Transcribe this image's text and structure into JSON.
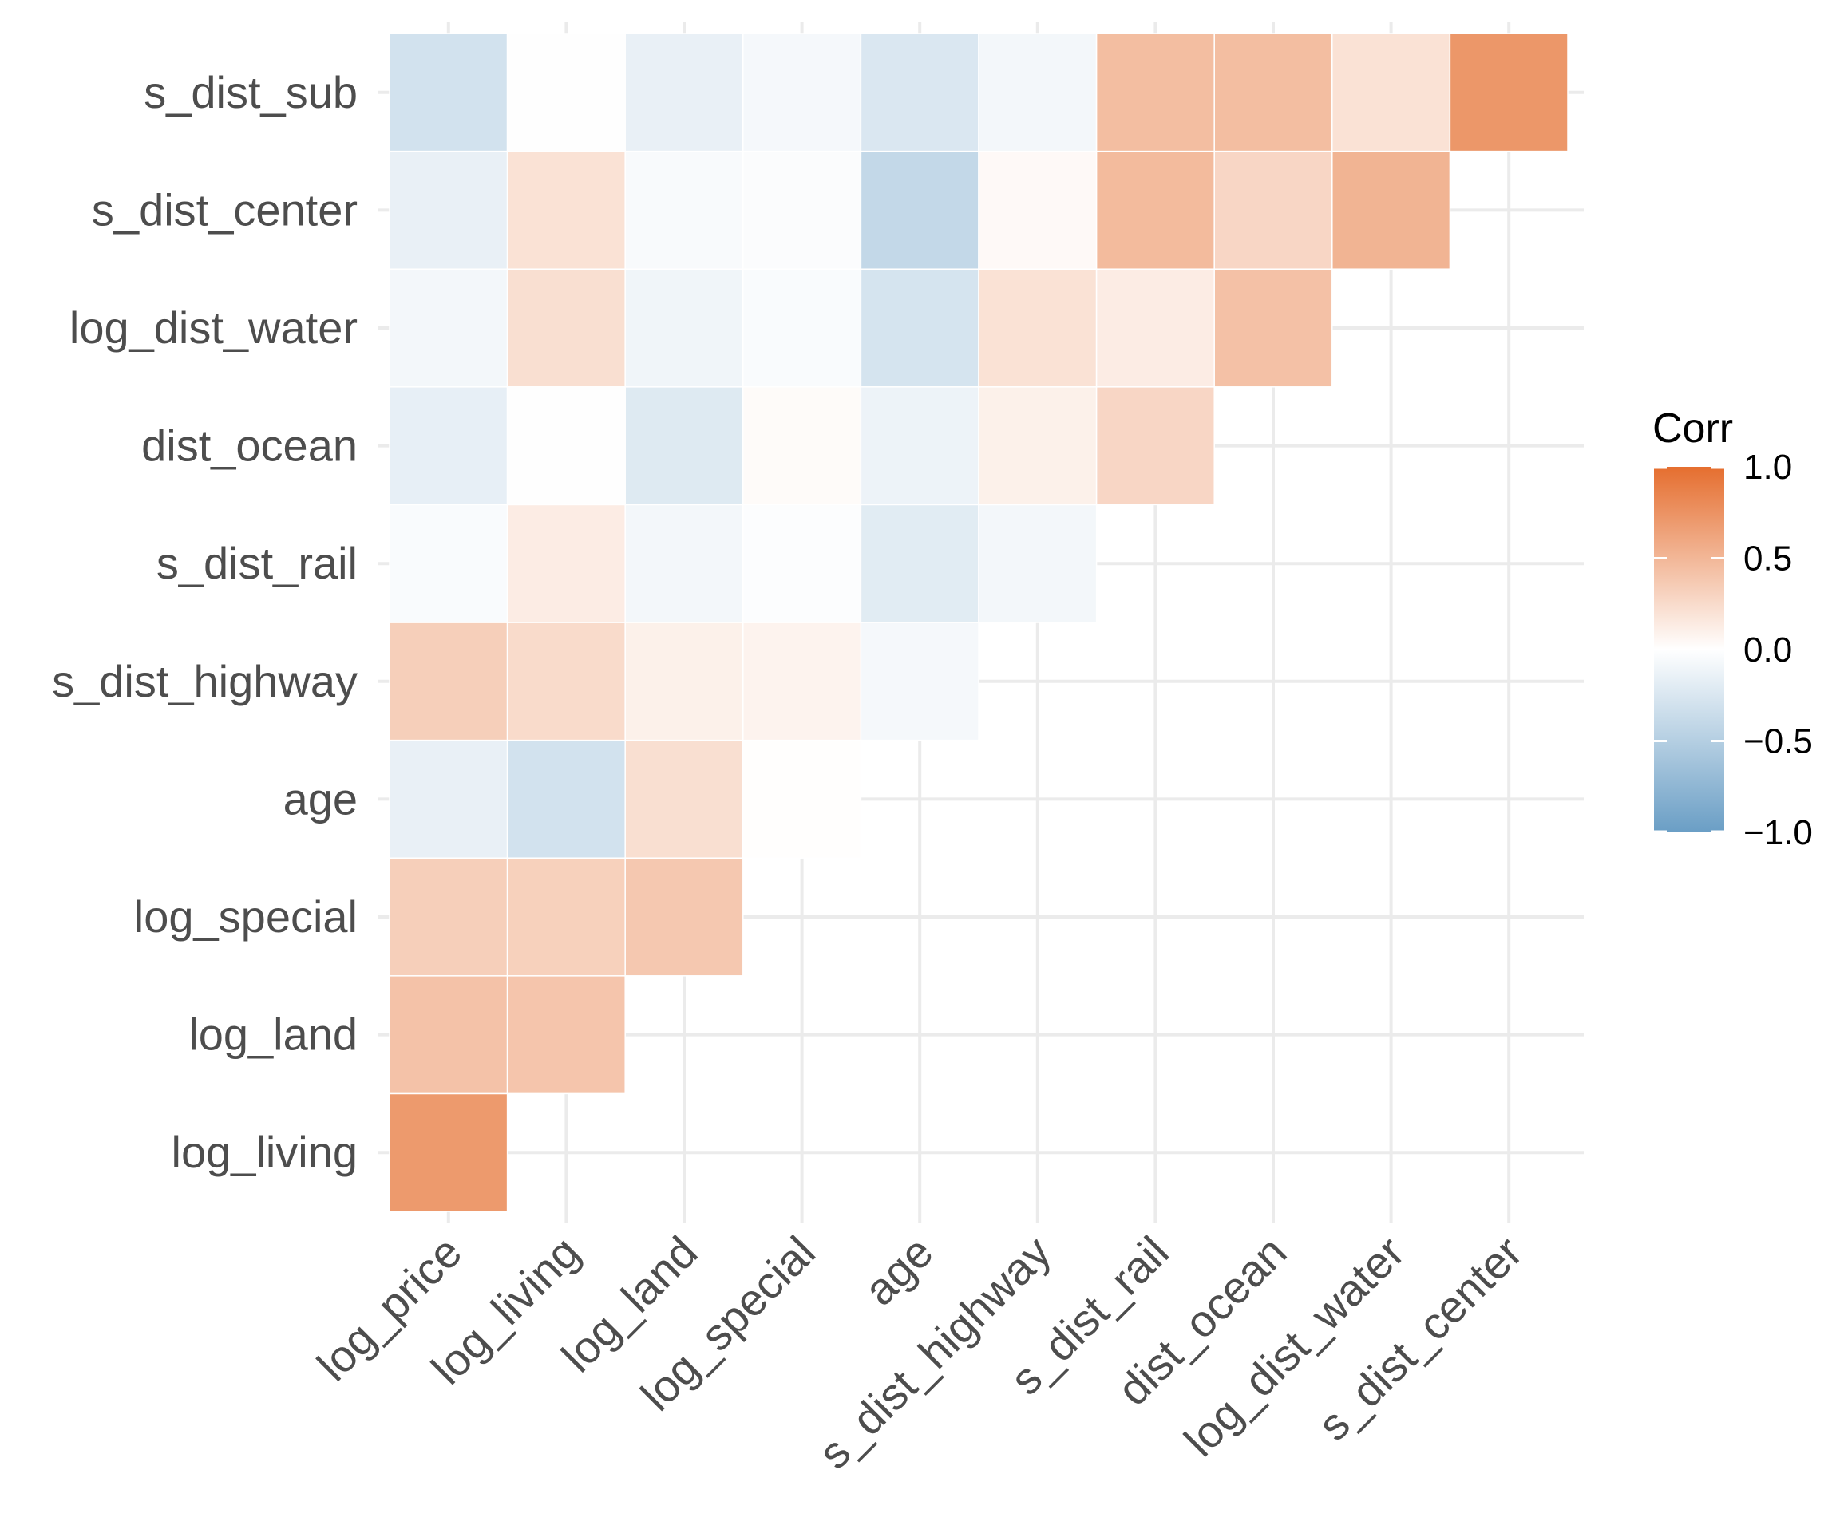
{
  "chart_data": {
    "type": "heatmap",
    "title": "",
    "x_labels": [
      "log_price",
      "log_living",
      "log_land",
      "log_special",
      "age",
      "s_dist_highway",
      "s_dist_rail",
      "dist_ocean",
      "log_dist_water",
      "s_dist_center"
    ],
    "y_labels": [
      "log_living",
      "log_land",
      "log_special",
      "age",
      "s_dist_highway",
      "s_dist_rail",
      "dist_ocean",
      "log_dist_water",
      "s_dist_center",
      "s_dist_sub"
    ],
    "cells": [
      {
        "x": "log_price",
        "y": "log_living",
        "value": 0.7
      },
      {
        "x": "log_price",
        "y": "log_land",
        "value": 0.42
      },
      {
        "x": "log_living",
        "y": "log_land",
        "value": 0.4
      },
      {
        "x": "log_price",
        "y": "log_special",
        "value": 0.33
      },
      {
        "x": "log_living",
        "y": "log_special",
        "value": 0.32
      },
      {
        "x": "log_land",
        "y": "log_special",
        "value": 0.38
      },
      {
        "x": "log_price",
        "y": "age",
        "value": -0.15
      },
      {
        "x": "log_living",
        "y": "age",
        "value": -0.3
      },
      {
        "x": "log_land",
        "y": "age",
        "value": 0.22
      },
      {
        "x": "log_special",
        "y": "age",
        "value": 0.01
      },
      {
        "x": "log_price",
        "y": "s_dist_highway",
        "value": 0.33
      },
      {
        "x": "log_living",
        "y": "s_dist_highway",
        "value": 0.25
      },
      {
        "x": "log_land",
        "y": "s_dist_highway",
        "value": 0.1
      },
      {
        "x": "log_special",
        "y": "s_dist_highway",
        "value": 0.08
      },
      {
        "x": "age",
        "y": "s_dist_highway",
        "value": -0.07
      },
      {
        "x": "log_price",
        "y": "s_dist_rail",
        "value": -0.04
      },
      {
        "x": "log_living",
        "y": "s_dist_rail",
        "value": 0.13
      },
      {
        "x": "log_land",
        "y": "s_dist_rail",
        "value": -0.08
      },
      {
        "x": "log_special",
        "y": "s_dist_rail",
        "value": -0.02
      },
      {
        "x": "age",
        "y": "s_dist_rail",
        "value": -0.2
      },
      {
        "x": "s_dist_highway",
        "y": "s_dist_rail",
        "value": -0.08
      },
      {
        "x": "log_price",
        "y": "dist_ocean",
        "value": -0.16
      },
      {
        "x": "log_living",
        "y": "dist_ocean",
        "value": -0.01
      },
      {
        "x": "log_land",
        "y": "dist_ocean",
        "value": -0.22
      },
      {
        "x": "log_special",
        "y": "dist_ocean",
        "value": 0.03
      },
      {
        "x": "age",
        "y": "dist_ocean",
        "value": -0.12
      },
      {
        "x": "s_dist_highway",
        "y": "dist_ocean",
        "value": 0.1
      },
      {
        "x": "s_dist_rail",
        "y": "dist_ocean",
        "value": 0.28
      },
      {
        "x": "log_price",
        "y": "log_dist_water",
        "value": -0.08
      },
      {
        "x": "log_living",
        "y": "log_dist_water",
        "value": 0.22
      },
      {
        "x": "log_land",
        "y": "log_dist_water",
        "value": -0.1
      },
      {
        "x": "log_special",
        "y": "log_dist_water",
        "value": -0.04
      },
      {
        "x": "age",
        "y": "log_dist_water",
        "value": -0.28
      },
      {
        "x": "s_dist_highway",
        "y": "log_dist_water",
        "value": 0.2
      },
      {
        "x": "s_dist_rail",
        "y": "log_dist_water",
        "value": 0.13
      },
      {
        "x": "dist_ocean",
        "y": "log_dist_water",
        "value": 0.43
      },
      {
        "x": "log_price",
        "y": "s_dist_center",
        "value": -0.15
      },
      {
        "x": "log_living",
        "y": "s_dist_center",
        "value": 0.2
      },
      {
        "x": "log_land",
        "y": "s_dist_center",
        "value": -0.05
      },
      {
        "x": "log_special",
        "y": "s_dist_center",
        "value": -0.03
      },
      {
        "x": "age",
        "y": "s_dist_center",
        "value": -0.4
      },
      {
        "x": "s_dist_highway",
        "y": "s_dist_center",
        "value": 0.04
      },
      {
        "x": "s_dist_rail",
        "y": "s_dist_center",
        "value": 0.47
      },
      {
        "x": "dist_ocean",
        "y": "s_dist_center",
        "value": 0.28
      },
      {
        "x": "log_dist_water",
        "y": "s_dist_center",
        "value": 0.52
      },
      {
        "x": "log_price",
        "y": "s_dist_sub",
        "value": -0.3
      },
      {
        "x": "log_living",
        "y": "s_dist_sub",
        "value": -0.01
      },
      {
        "x": "log_land",
        "y": "s_dist_sub",
        "value": -0.15
      },
      {
        "x": "log_special",
        "y": "s_dist_sub",
        "value": -0.07
      },
      {
        "x": "age",
        "y": "s_dist_sub",
        "value": -0.25
      },
      {
        "x": "s_dist_highway",
        "y": "s_dist_sub",
        "value": -0.08
      },
      {
        "x": "s_dist_rail",
        "y": "s_dist_sub",
        "value": 0.45
      },
      {
        "x": "dist_ocean",
        "y": "s_dist_sub",
        "value": 0.45
      },
      {
        "x": "log_dist_water",
        "y": "s_dist_sub",
        "value": 0.2
      },
      {
        "x": "s_dist_center",
        "y": "s_dist_sub",
        "value": 0.72
      }
    ],
    "legend": {
      "title": "Corr",
      "position": "right",
      "ticks": [
        {
          "value": 1.0,
          "label": "1.0"
        },
        {
          "value": 0.5,
          "label": "0.5"
        },
        {
          "value": 0.0,
          "label": "0.0"
        },
        {
          "value": -0.5,
          "label": "−0.5"
        },
        {
          "value": -1.0,
          "label": "−1.0"
        }
      ],
      "range": [
        -1,
        1
      ]
    },
    "color_scale": {
      "low": "#6a9ec5",
      "mid": "#ffffff",
      "high": "#e56e2f"
    },
    "grid": true,
    "grid_color": "#ebebeb"
  }
}
